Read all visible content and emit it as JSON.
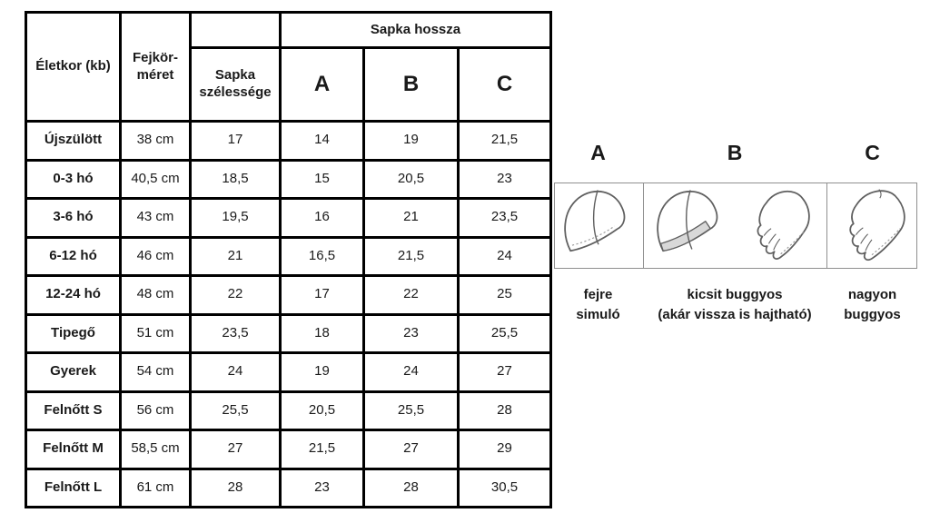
{
  "colors": {
    "table_border": "#000000",
    "text": "#1a1a1a",
    "illustration_line": "#5f5f5f",
    "illustration_box_border": "#8f8f8f",
    "hat_b_band_fill": "#d8d8d8"
  },
  "table": {
    "header": {
      "age": "Életkor (kb)",
      "head_circumference": "Fejkör-méret",
      "hat_width": "Sapka szélessége",
      "hat_length": "Sapka hossza",
      "col_a": "A",
      "col_b": "B",
      "col_c": "C"
    },
    "rows": [
      {
        "age": "Újszülött",
        "head": "38 cm",
        "width": "17",
        "a": "14",
        "b": "19",
        "c": "21,5"
      },
      {
        "age": "0-3 hó",
        "head": "40,5 cm",
        "width": "18,5",
        "a": "15",
        "b": "20,5",
        "c": "23"
      },
      {
        "age": "3-6 hó",
        "head": "43 cm",
        "width": "19,5",
        "a": "16",
        "b": "21",
        "c": "23,5"
      },
      {
        "age": "6-12 hó",
        "head": "46 cm",
        "width": "21",
        "a": "16,5",
        "b": "21,5",
        "c": "24"
      },
      {
        "age": "12-24 hó",
        "head": "48 cm",
        "width": "22",
        "a": "17",
        "b": "22",
        "c": "25"
      },
      {
        "age": "Tipegő",
        "head": "51 cm",
        "width": "23,5",
        "a": "18",
        "b": "23",
        "c": "25,5"
      },
      {
        "age": "Gyerek",
        "head": "54 cm",
        "width": "24",
        "a": "19",
        "b": "24",
        "c": "27"
      },
      {
        "age": "Felnőtt S",
        "head": "56 cm",
        "width": "25,5",
        "a": "20,5",
        "b": "25,5",
        "c": "28"
      },
      {
        "age": "Felnőtt M",
        "head": "58,5 cm",
        "width": "27",
        "a": "21,5",
        "b": "27",
        "c": "29"
      },
      {
        "age": "Felnőtt L",
        "head": "61 cm",
        "width": "28",
        "a": "23",
        "b": "28",
        "c": "30,5"
      }
    ]
  },
  "legend": {
    "items": [
      {
        "letter": "A",
        "caption": [
          "fejre",
          "simuló"
        ]
      },
      {
        "letter": "B",
        "caption": [
          "kicsit buggyos",
          "(akár vissza is hajtható)"
        ]
      },
      {
        "letter": "C",
        "caption": [
          "nagyon",
          "buggyos"
        ]
      }
    ]
  }
}
